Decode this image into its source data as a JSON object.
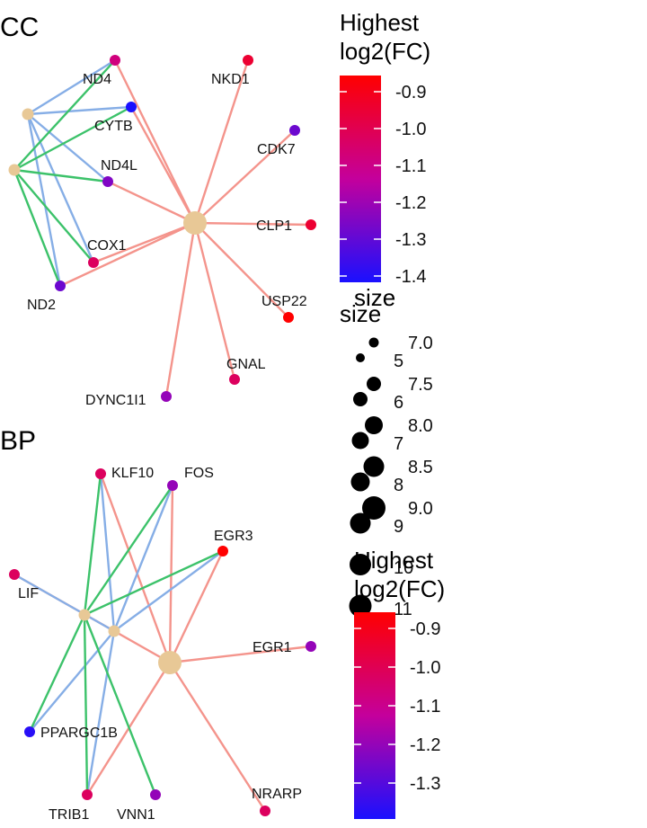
{
  "colors": {
    "edge_hub": "#f4948c",
    "edge_blue": "#86aee6",
    "edge_green": "#3cc26a",
    "hub_node": "#e8c896",
    "gradient_high": "#ff0000",
    "gradient_low": "#1a10ff"
  },
  "panels": [
    {
      "id": "cc",
      "title": "CC",
      "hubs": [
        {
          "id": "h_main",
          "size": "large"
        },
        {
          "id": "h_a",
          "size": "small"
        },
        {
          "id": "h_b",
          "size": "small"
        }
      ],
      "genes": [
        {
          "id": "ND4",
          "label": "ND4",
          "fc": -1.1
        },
        {
          "id": "NKD1",
          "label": "NKD1",
          "fc": -0.98
        },
        {
          "id": "CYTB",
          "label": "CYTB",
          "fc": -1.4
        },
        {
          "id": "CDK7",
          "label": "CDK7",
          "fc": -1.28
        },
        {
          "id": "ND4L",
          "label": "ND4L",
          "fc": -1.25
        },
        {
          "id": "CLP1",
          "label": "CLP1",
          "fc": -0.98
        },
        {
          "id": "COX1",
          "label": "COX1",
          "fc": -1.05
        },
        {
          "id": "ND2",
          "label": "ND2",
          "fc": -1.28
        },
        {
          "id": "USP22",
          "label": "USP22",
          "fc": -0.9
        },
        {
          "id": "GNAL",
          "label": "GNAL",
          "fc": -1.05
        },
        {
          "id": "DYNC1I1",
          "label": "DYNC1I1",
          "fc": -1.22
        }
      ],
      "edges": [
        {
          "from": "h_main",
          "to": "ND4",
          "kind": "hub"
        },
        {
          "from": "h_main",
          "to": "NKD1",
          "kind": "hub"
        },
        {
          "from": "h_main",
          "to": "CYTB",
          "kind": "hub"
        },
        {
          "from": "h_main",
          "to": "CDK7",
          "kind": "hub"
        },
        {
          "from": "h_main",
          "to": "ND4L",
          "kind": "hub"
        },
        {
          "from": "h_main",
          "to": "CLP1",
          "kind": "hub"
        },
        {
          "from": "h_main",
          "to": "COX1",
          "kind": "hub"
        },
        {
          "from": "h_main",
          "to": "ND2",
          "kind": "hub"
        },
        {
          "from": "h_main",
          "to": "USP22",
          "kind": "hub"
        },
        {
          "from": "h_main",
          "to": "GNAL",
          "kind": "hub"
        },
        {
          "from": "h_main",
          "to": "DYNC1I1",
          "kind": "hub"
        },
        {
          "from": "h_a",
          "to": "ND4",
          "kind": "blue"
        },
        {
          "from": "h_a",
          "to": "CYTB",
          "kind": "blue"
        },
        {
          "from": "h_a",
          "to": "ND4L",
          "kind": "blue"
        },
        {
          "from": "h_a",
          "to": "COX1",
          "kind": "blue"
        },
        {
          "from": "h_a",
          "to": "ND2",
          "kind": "blue"
        },
        {
          "from": "h_b",
          "to": "ND4",
          "kind": "green"
        },
        {
          "from": "h_b",
          "to": "CYTB",
          "kind": "green"
        },
        {
          "from": "h_b",
          "to": "ND4L",
          "kind": "green"
        },
        {
          "from": "h_b",
          "to": "COX1",
          "kind": "green"
        },
        {
          "from": "h_b",
          "to": "ND2",
          "kind": "green"
        }
      ]
    },
    {
      "id": "bp",
      "title": "BP",
      "hubs": [
        {
          "id": "h_main",
          "size": "large"
        },
        {
          "id": "h_a",
          "size": "small"
        },
        {
          "id": "h_b",
          "size": "small"
        }
      ],
      "genes": [
        {
          "id": "KLF10",
          "label": "KLF10",
          "fc": -1.05
        },
        {
          "id": "FOS",
          "label": "FOS",
          "fc": -1.22
        },
        {
          "id": "EGR3",
          "label": "EGR3",
          "fc": -0.9
        },
        {
          "id": "LIF",
          "label": "LIF",
          "fc": -1.05
        },
        {
          "id": "EGR1",
          "label": "EGR1",
          "fc": -1.22
        },
        {
          "id": "PPARGC1B",
          "label": "PPARGC1B",
          "fc": -1.38
        },
        {
          "id": "TRIB1",
          "label": "TRIB1",
          "fc": -1.05
        },
        {
          "id": "VNN1",
          "label": "VNN1",
          "fc": -1.22
        },
        {
          "id": "NRARP",
          "label": "NRARP",
          "fc": -1.05
        }
      ],
      "edges": [
        {
          "from": "h_main",
          "to": "KLF10",
          "kind": "hub"
        },
        {
          "from": "h_main",
          "to": "FOS",
          "kind": "hub"
        },
        {
          "from": "h_main",
          "to": "EGR3",
          "kind": "hub"
        },
        {
          "from": "h_main",
          "to": "LIF",
          "kind": "hub"
        },
        {
          "from": "h_main",
          "to": "EGR1",
          "kind": "hub"
        },
        {
          "from": "h_main",
          "to": "TRIB1",
          "kind": "hub"
        },
        {
          "from": "h_main",
          "to": "NRARP",
          "kind": "hub"
        },
        {
          "from": "h_a",
          "to": "KLF10",
          "kind": "blue"
        },
        {
          "from": "h_a",
          "to": "FOS",
          "kind": "blue"
        },
        {
          "from": "h_a",
          "to": "EGR3",
          "kind": "blue"
        },
        {
          "from": "h_a",
          "to": "LIF",
          "kind": "blue"
        },
        {
          "from": "h_a",
          "to": "PPARGC1B",
          "kind": "blue"
        },
        {
          "from": "h_a",
          "to": "TRIB1",
          "kind": "blue"
        },
        {
          "from": "h_b",
          "to": "KLF10",
          "kind": "green"
        },
        {
          "from": "h_b",
          "to": "FOS",
          "kind": "green"
        },
        {
          "from": "h_b",
          "to": "EGR3",
          "kind": "green"
        },
        {
          "from": "h_b",
          "to": "PPARGC1B",
          "kind": "green"
        },
        {
          "from": "h_b",
          "to": "TRIB1",
          "kind": "green"
        },
        {
          "from": "h_b",
          "to": "VNN1",
          "kind": "green"
        }
      ]
    }
  ],
  "legends": {
    "cc_color": {
      "title_line1": "Highest",
      "title_line2": "log2(FC)",
      "ticks": [
        "-0.9",
        "-1.0",
        "-1.1",
        "-1.2",
        "-1.3",
        "-1.4"
      ]
    },
    "cc_size": {
      "title": "size",
      "labels": [
        "7.0",
        "7.5",
        "8.0",
        "8.5",
        "9.0"
      ]
    },
    "bp_size": {
      "title": "size",
      "labels": [
        "5",
        "6",
        "7",
        "8",
        "9",
        "10",
        "11"
      ]
    },
    "bp_color": {
      "title_line1": "Highest",
      "title_line2": "log2(FC)",
      "ticks": [
        "-0.9",
        "-1.0",
        "-1.1",
        "-1.2",
        "-1.3"
      ]
    }
  }
}
